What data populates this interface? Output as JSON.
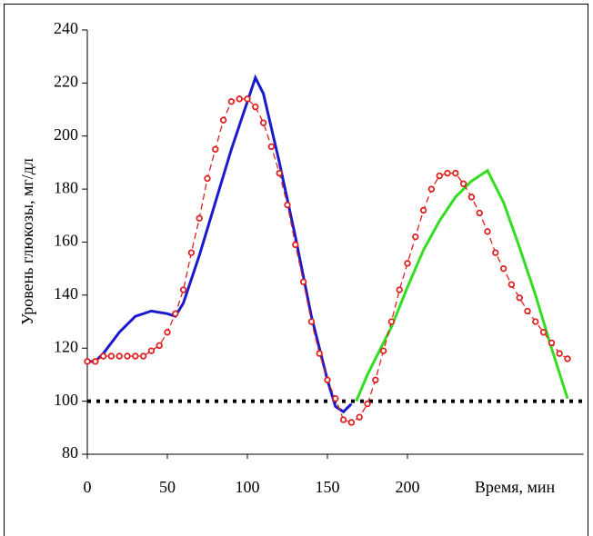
{
  "chart_data": {
    "type": "line",
    "x_label": "Время, мин",
    "y_label": "Уровень глюкозы, мг/дл",
    "xlim": [
      0,
      310
    ],
    "ylim": [
      80,
      240
    ],
    "xticks": [
      0,
      50,
      100,
      150,
      200
    ],
    "yticks": [
      80,
      100,
      120,
      140,
      160,
      180,
      200,
      220,
      240
    ],
    "reference_line": {
      "value": 100,
      "color": "#000000"
    },
    "series": [
      {
        "color": "#1a1acc",
        "style": "solid",
        "x": [
          0,
          5,
          10,
          20,
          30,
          40,
          50,
          55,
          60,
          70,
          80,
          90,
          100,
          105,
          110,
          120,
          130,
          140,
          150,
          155,
          160,
          165
        ],
        "values": [
          115,
          115,
          118,
          126,
          132,
          134,
          133,
          132,
          137,
          155,
          175,
          195,
          213,
          222,
          216,
          190,
          162,
          132,
          108,
          98,
          96,
          99
        ]
      },
      {
        "color": "#33dd22",
        "style": "solid",
        "x": [
          168,
          175,
          190,
          200,
          210,
          220,
          230,
          240,
          250,
          260,
          270,
          280,
          290,
          300
        ],
        "values": [
          100,
          110,
          128,
          143,
          157,
          168,
          177,
          183,
          187,
          175,
          158,
          140,
          120,
          101
        ]
      },
      {
        "color": "#dd2222",
        "style": "dashed-markers",
        "x": [
          0,
          5,
          10,
          15,
          20,
          25,
          30,
          35,
          40,
          45,
          50,
          55,
          60,
          65,
          70,
          75,
          80,
          85,
          90,
          95,
          100,
          105,
          110,
          115,
          120,
          125,
          130,
          135,
          140,
          145,
          150,
          155,
          160,
          165,
          170,
          175,
          180,
          185,
          190,
          195,
          200,
          205,
          210,
          215,
          220,
          225,
          230,
          235,
          240,
          245,
          250,
          255,
          260,
          265,
          270,
          275,
          280,
          285,
          290,
          295,
          300
        ],
        "values": [
          115,
          115,
          117,
          117,
          117,
          117,
          117,
          117,
          119,
          121,
          126,
          133,
          142,
          156,
          169,
          184,
          195,
          206,
          213,
          214,
          214,
          211,
          205,
          196,
          186,
          174,
          159,
          145,
          130,
          118,
          108,
          101,
          93,
          92,
          94,
          99,
          108,
          119,
          130,
          142,
          152,
          162,
          172,
          180,
          185,
          186,
          186,
          182,
          177,
          171,
          164,
          156,
          150,
          144,
          139,
          134,
          130,
          126,
          122,
          118,
          116
        ]
      }
    ]
  }
}
